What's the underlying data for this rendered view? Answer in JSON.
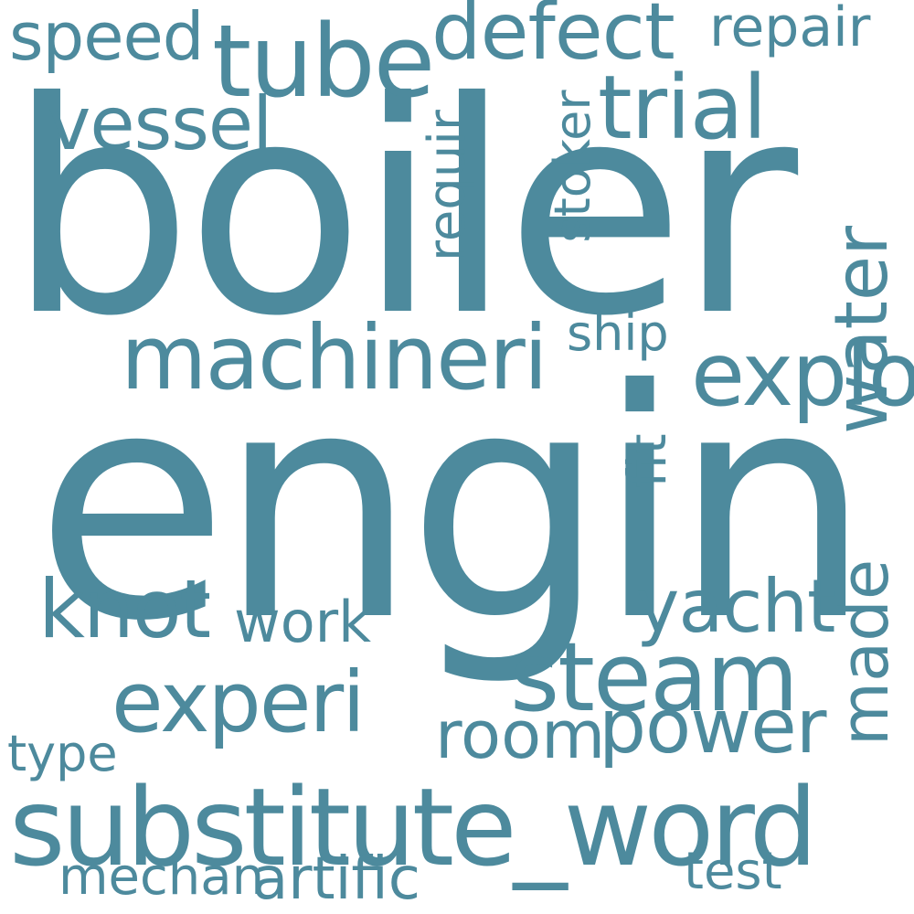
{
  "colors": {
    "word": "#4d8a9d",
    "background": "#ffffff"
  },
  "words": [
    {
      "id": "boiler",
      "text": "boiler"
    },
    {
      "id": "engin",
      "text": "engin"
    },
    {
      "id": "substitute_word",
      "text": "substitute_word"
    },
    {
      "id": "machineri",
      "text": "machineri"
    },
    {
      "id": "tube",
      "text": "tube"
    },
    {
      "id": "defect",
      "text": "defect"
    },
    {
      "id": "trial",
      "text": "trial"
    },
    {
      "id": "vessel",
      "text": "vessel"
    },
    {
      "id": "speed",
      "text": "speed"
    },
    {
      "id": "repair",
      "text": "repair"
    },
    {
      "id": "requir",
      "text": "requir"
    },
    {
      "id": "stoker",
      "text": "stoker"
    },
    {
      "id": "water",
      "text": "water"
    },
    {
      "id": "fit",
      "text": "fit"
    },
    {
      "id": "made",
      "text": "made"
    },
    {
      "id": "explos",
      "text": "explos"
    },
    {
      "id": "ship",
      "text": "ship"
    },
    {
      "id": "knot",
      "text": "knot"
    },
    {
      "id": "work",
      "text": "work"
    },
    {
      "id": "yacht",
      "text": "yacht"
    },
    {
      "id": "steam",
      "text": "steam"
    },
    {
      "id": "experi",
      "text": "experi"
    },
    {
      "id": "power",
      "text": "power"
    },
    {
      "id": "room",
      "text": "room"
    },
    {
      "id": "type",
      "text": "type"
    },
    {
      "id": "mechan",
      "text": "mechan"
    },
    {
      "id": "artific",
      "text": "artific"
    },
    {
      "id": "test",
      "text": "test"
    }
  ]
}
